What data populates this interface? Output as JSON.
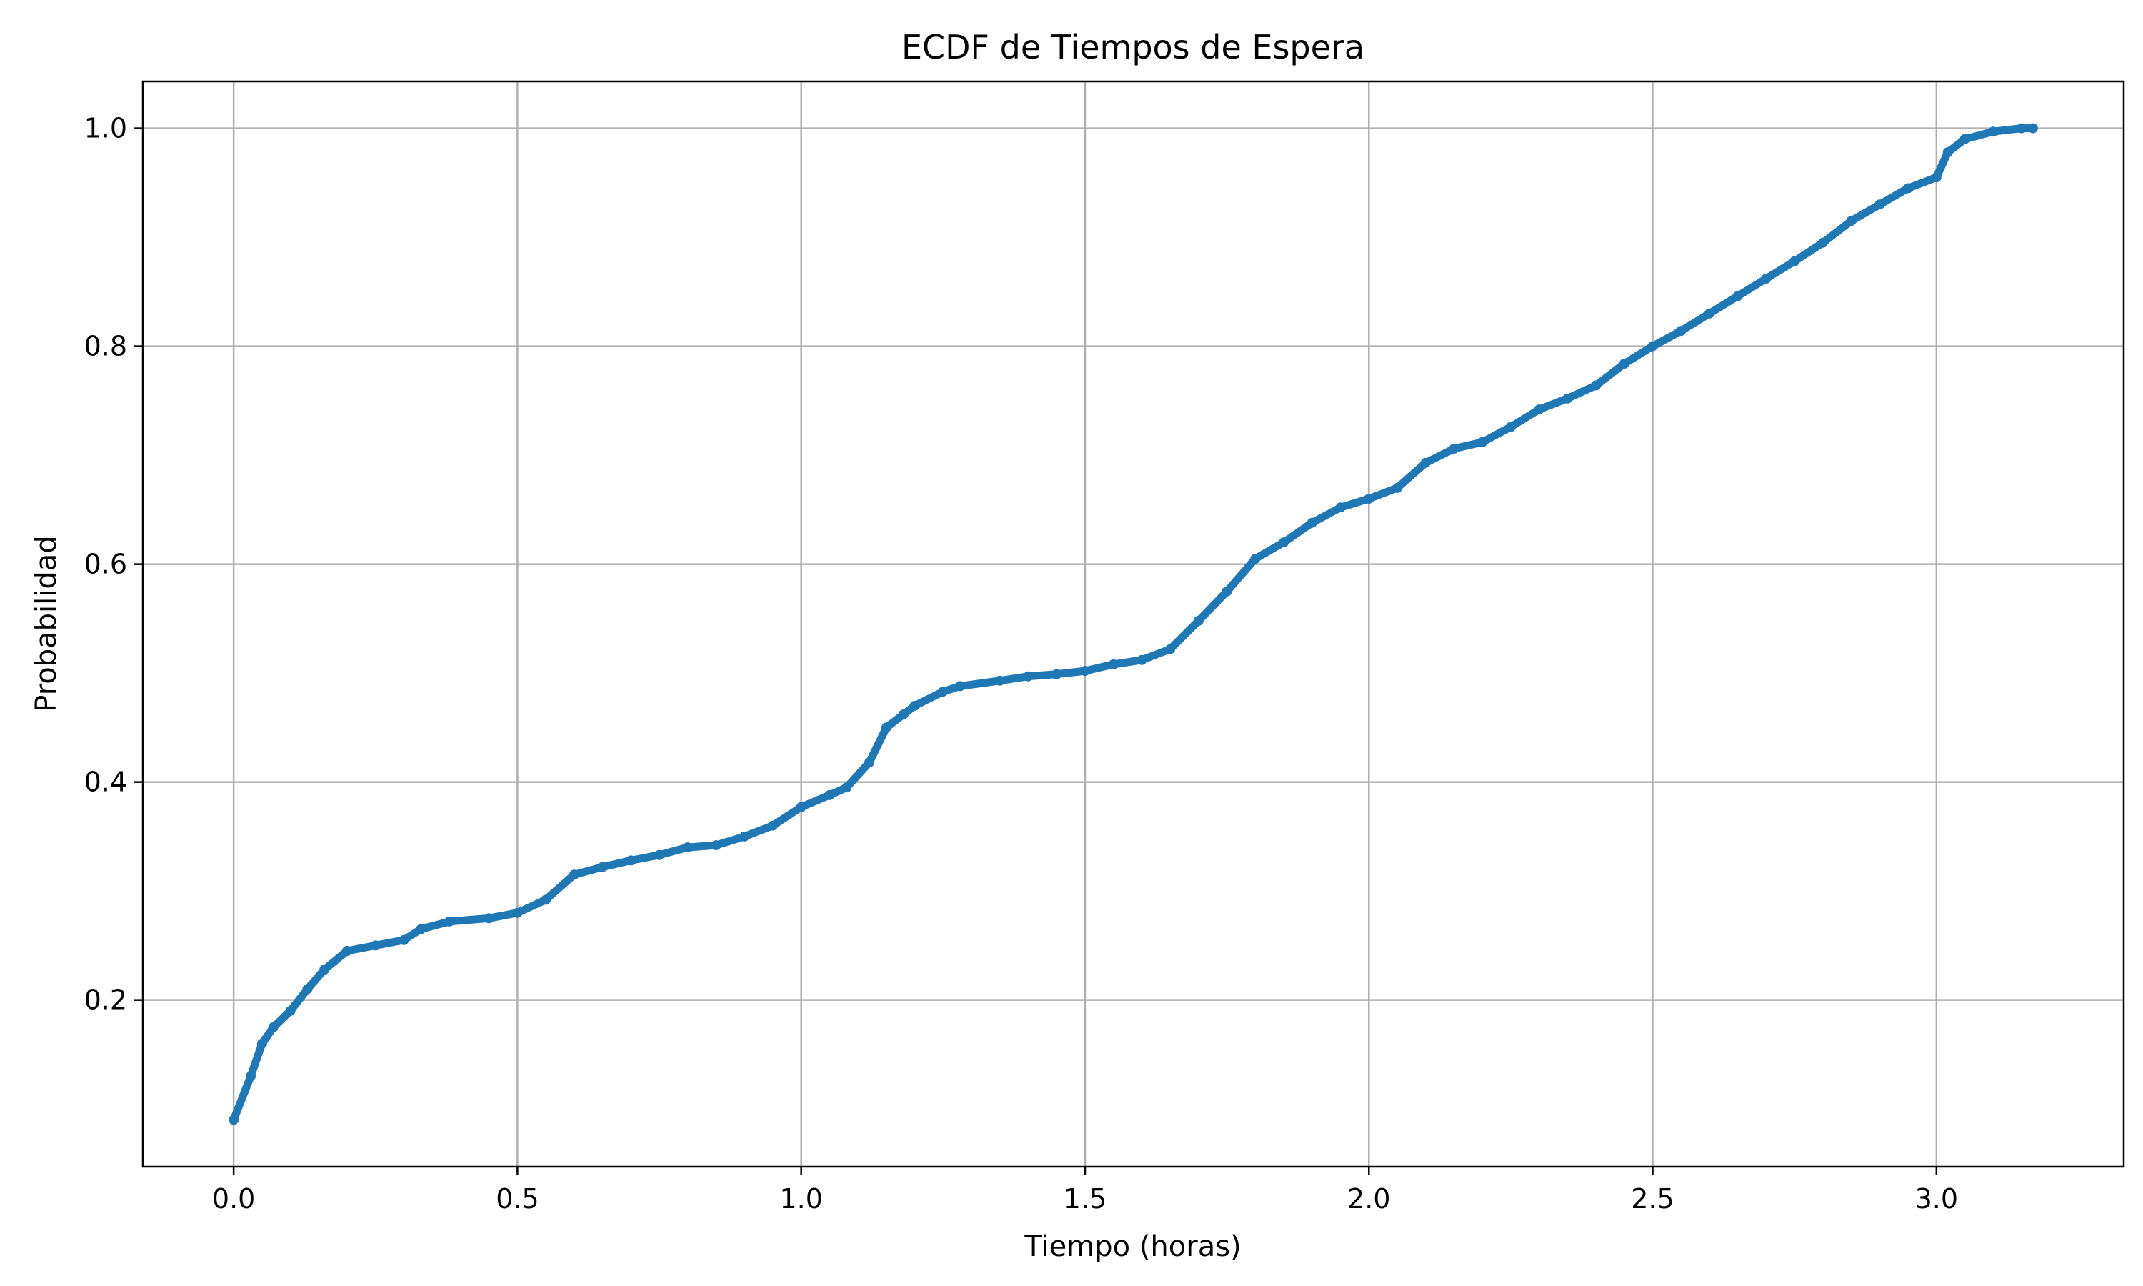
{
  "chart_data": {
    "type": "scatter",
    "title": "ECDF de Tiempos de Espera",
    "xlabel": "Tiempo (horas)",
    "ylabel": "Probabilidad",
    "xlim": [
      -0.16,
      3.33
    ],
    "ylim": [
      0.047,
      1.043
    ],
    "xticks": [
      0.0,
      0.5,
      1.0,
      1.5,
      2.0,
      2.5,
      3.0
    ],
    "xtick_labels": [
      "0.0",
      "0.5",
      "1.0",
      "1.5",
      "2.0",
      "2.5",
      "3.0"
    ],
    "yticks": [
      0.2,
      0.4,
      0.6,
      0.8,
      1.0
    ],
    "ytick_labels": [
      "0.2",
      "0.4",
      "0.6",
      "0.8",
      "1.0"
    ],
    "grid": true,
    "legend": false,
    "series": [
      {
        "color": "#1f77b4",
        "x": [
          0.0,
          0.03,
          0.05,
          0.07,
          0.1,
          0.13,
          0.16,
          0.2,
          0.25,
          0.3,
          0.33,
          0.38,
          0.45,
          0.5,
          0.55,
          0.6,
          0.65,
          0.7,
          0.75,
          0.8,
          0.85,
          0.9,
          0.95,
          1.0,
          1.05,
          1.08,
          1.12,
          1.15,
          1.18,
          1.2,
          1.25,
          1.28,
          1.35,
          1.4,
          1.45,
          1.5,
          1.55,
          1.6,
          1.65,
          1.7,
          1.75,
          1.8,
          1.85,
          1.9,
          1.95,
          2.0,
          2.05,
          2.1,
          2.15,
          2.2,
          2.25,
          2.3,
          2.35,
          2.4,
          2.45,
          2.5,
          2.55,
          2.6,
          2.65,
          2.7,
          2.75,
          2.8,
          2.85,
          2.9,
          2.95,
          3.0,
          3.02,
          3.05,
          3.1,
          3.15,
          3.17
        ],
        "y": [
          0.09,
          0.13,
          0.16,
          0.175,
          0.19,
          0.21,
          0.228,
          0.245,
          0.25,
          0.255,
          0.265,
          0.272,
          0.275,
          0.28,
          0.292,
          0.315,
          0.322,
          0.328,
          0.333,
          0.34,
          0.342,
          0.35,
          0.36,
          0.377,
          0.388,
          0.395,
          0.418,
          0.45,
          0.462,
          0.47,
          0.483,
          0.488,
          0.493,
          0.497,
          0.499,
          0.502,
          0.508,
          0.512,
          0.522,
          0.548,
          0.575,
          0.605,
          0.62,
          0.638,
          0.652,
          0.66,
          0.67,
          0.693,
          0.706,
          0.712,
          0.726,
          0.742,
          0.752,
          0.764,
          0.784,
          0.8,
          0.814,
          0.83,
          0.846,
          0.862,
          0.878,
          0.895,
          0.915,
          0.93,
          0.945,
          0.955,
          0.978,
          0.99,
          0.997,
          1.0,
          1.0
        ]
      }
    ]
  }
}
